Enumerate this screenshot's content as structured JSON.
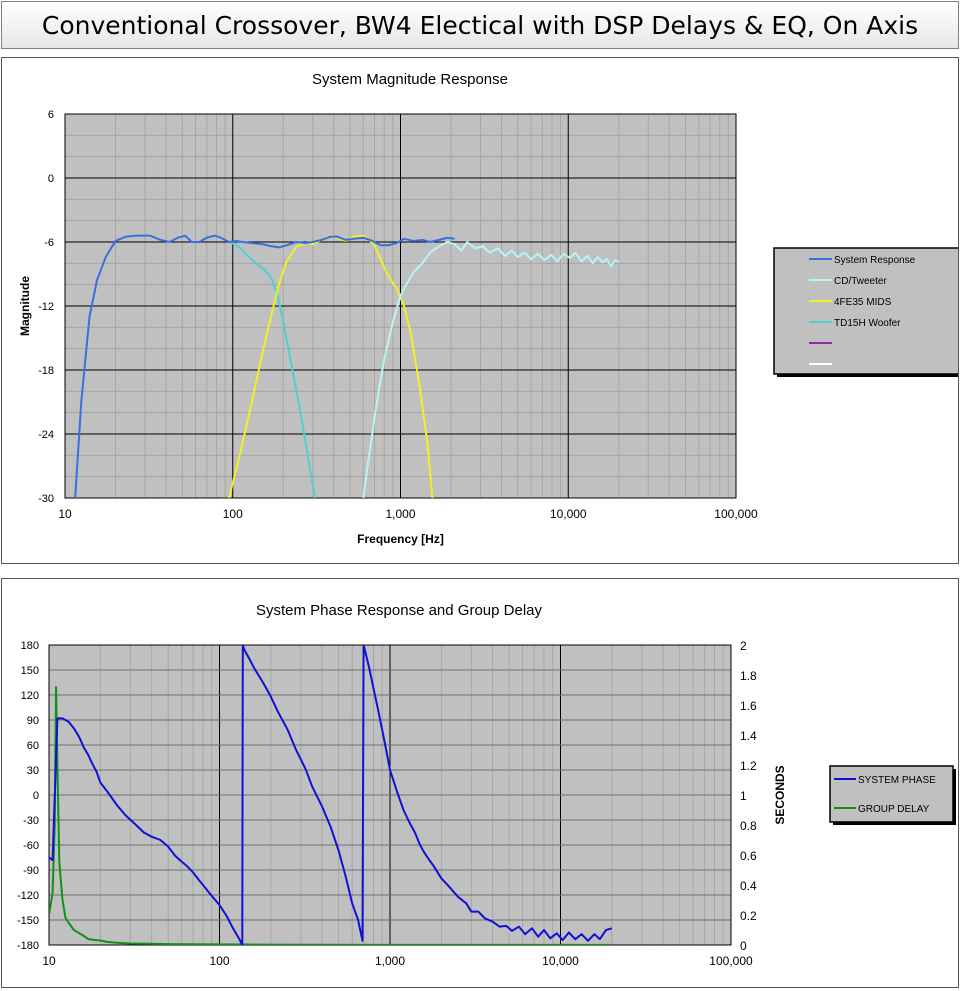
{
  "page_title": "Conventional Crossover,  BW4 Electical with DSP Delays & EQ, On Axis",
  "chart_data": [
    {
      "type": "line",
      "title": "System Magnitude Response",
      "xlabel": "Frequency [Hz]",
      "ylabel": "Magnitude",
      "x_scale": "log",
      "xlim": [
        10,
        100000
      ],
      "ylim": [
        -30,
        6
      ],
      "x_ticks": [
        10,
        100,
        1000,
        10000,
        100000
      ],
      "x_tick_labels": [
        "10",
        "100",
        "1,000",
        "10,000",
        "100,000"
      ],
      "y_ticks": [
        -30,
        -24,
        -18,
        -12,
        -6,
        0,
        6
      ],
      "y_tick_labels": [
        "-30",
        "-24",
        "-18",
        "-12",
        "-6",
        "0",
        "6"
      ],
      "grid": true,
      "plot_background": "#c0c0c0",
      "legend_position": "right",
      "legend_entries": [
        "System Response",
        "CD/Tweeter",
        "4FE35 MIDS",
        "TD15H Woofer",
        "",
        ""
      ],
      "series": [
        {
          "name": "System Response",
          "color": "#3a6fe0",
          "x": [
            11.5,
            12.5,
            14,
            15.5,
            17.5,
            20,
            23,
            27,
            32,
            37,
            42,
            47,
            52,
            57,
            63,
            70,
            78,
            85,
            95,
            105,
            115,
            130,
            150,
            170,
            190,
            210,
            240,
            270,
            300,
            340,
            380,
            420,
            470,
            530,
            600,
            680,
            760,
            850,
            950,
            1050,
            1200,
            1350,
            1500,
            1700,
            1900,
            2100
          ],
          "y": [
            -30,
            -21,
            -13,
            -9.6,
            -7.4,
            -5.9,
            -5.5,
            -5.4,
            -5.4,
            -5.8,
            -6.0,
            -5.6,
            -5.4,
            -6.0,
            -6.0,
            -5.6,
            -5.4,
            -5.6,
            -6.0,
            -5.9,
            -6.0,
            -6.1,
            -6.2,
            -6.4,
            -6.5,
            -6.3,
            -6.0,
            -6.1,
            -6.0,
            -5.8,
            -5.5,
            -5.5,
            -5.8,
            -5.7,
            -5.6,
            -5.9,
            -6.3,
            -6.3,
            -6.1,
            -5.7,
            -5.9,
            -5.8,
            -6.0,
            -5.8,
            -5.6,
            -5.7
          ]
        },
        {
          "name": "CD/Tweeter",
          "color": "#b8f4f4",
          "x": [
            600,
            650,
            700,
            750,
            800,
            900,
            1000,
            1100,
            1200,
            1350,
            1500,
            1700,
            1900,
            2100,
            2300,
            2500,
            2800,
            3100,
            3400,
            3800,
            4200,
            4600,
            5000,
            5500,
            6000,
            6600,
            7200,
            7900,
            8600,
            9400,
            10200,
            11000,
            12000,
            13000,
            14000,
            15000,
            16000,
            17000,
            18000,
            19000,
            20000
          ],
          "y": [
            -30,
            -26,
            -22.5,
            -19.5,
            -17,
            -13.5,
            -11,
            -9.8,
            -8.8,
            -8.0,
            -7.0,
            -6.4,
            -6.0,
            -6.2,
            -6.8,
            -6.0,
            -6.6,
            -6.4,
            -7.0,
            -6.6,
            -7.3,
            -6.8,
            -7.4,
            -7.0,
            -7.6,
            -7.1,
            -7.7,
            -7.2,
            -7.8,
            -7.1,
            -7.5,
            -7.0,
            -7.8,
            -7.3,
            -8.0,
            -7.4,
            -7.9,
            -7.6,
            -8.3,
            -7.7,
            -7.9
          ]
        },
        {
          "name": "4FE35 MIDS",
          "color": "#f0f023",
          "x": [
            95,
            110,
            130,
            150,
            170,
            190,
            210,
            240,
            270,
            300,
            340,
            380,
            420,
            470,
            530,
            600,
            650,
            700,
            760,
            820,
            880,
            950,
            1050,
            1150,
            1300,
            1450,
            1550
          ],
          "y": [
            -30,
            -26,
            -21,
            -16.5,
            -12.8,
            -9.8,
            -7.8,
            -6.4,
            -6.1,
            -6.2,
            -5.8,
            -5.4,
            -5.6,
            -5.9,
            -5.5,
            -5.4,
            -5.8,
            -6.3,
            -7.6,
            -8.8,
            -9.6,
            -10.4,
            -12,
            -14.5,
            -19.5,
            -25,
            -30
          ]
        },
        {
          "name": "TD15H Woofer",
          "color": "#4fd0d0",
          "x": [
            95,
            105,
            115,
            125,
            140,
            155,
            170,
            185,
            200,
            215,
            230,
            250,
            270,
            290,
            310
          ],
          "y": [
            -6.0,
            -6.3,
            -6.8,
            -7.4,
            -8.1,
            -8.6,
            -9.4,
            -11,
            -13.5,
            -16,
            -18.5,
            -21.5,
            -24.5,
            -27.5,
            -30
          ]
        }
      ]
    },
    {
      "type": "line",
      "title": "System Phase Response and Group Delay",
      "xlabel": "",
      "ylabel": "",
      "y2label": "SECONDS",
      "x_scale": "log",
      "xlim": [
        10,
        100000
      ],
      "ylim": [
        -180,
        180
      ],
      "y2lim": [
        0,
        2
      ],
      "x_ticks": [
        10,
        100,
        1000,
        10000,
        100000
      ],
      "x_tick_labels": [
        "10",
        "100",
        "1,000",
        "10,000",
        "100,000"
      ],
      "y_ticks": [
        -180,
        -150,
        -120,
        -90,
        -60,
        -30,
        0,
        30,
        60,
        90,
        120,
        150,
        180
      ],
      "y_tick_labels": [
        "-180",
        "-150",
        "-120",
        "-90",
        "-60",
        "-30",
        "0",
        "30",
        "60",
        "90",
        "120",
        "150",
        "180"
      ],
      "y2_ticks": [
        0,
        0.2,
        0.4,
        0.6,
        0.8,
        1,
        1.2,
        1.4,
        1.6,
        1.8,
        2
      ],
      "y2_tick_labels": [
        "0",
        "0.2",
        "0.4",
        "0.6",
        "0.8",
        "1",
        "1.2",
        "1.4",
        "1.6",
        "1.8",
        "2"
      ],
      "grid": true,
      "plot_background": "#c0c0c0",
      "legend_position": "right",
      "legend_entries": [
        "SYSTEM PHASE",
        "GROUP DELAY"
      ],
      "series": [
        {
          "name": "SYSTEM PHASE",
          "color": "#1010d8",
          "axis": "left",
          "x": [
            10,
            10.5,
            11.2,
            12,
            13,
            14,
            15,
            16,
            17,
            18,
            19,
            20,
            22,
            25,
            28,
            32,
            36,
            40,
            45,
            50,
            55,
            60,
            65,
            70,
            75,
            80,
            90,
            100,
            110,
            120,
            130,
            136,
            137,
            140,
            150,
            160,
            180,
            200,
            220,
            250,
            280,
            320,
            350,
            400,
            450,
            500,
            550,
            600,
            650,
            690,
            700,
            720,
            750,
            800,
            850,
            900,
            950,
            1000,
            1100,
            1200,
            1300,
            1400,
            1500,
            1600,
            1700,
            1800,
            2000,
            2200,
            2500,
            2800,
            3000,
            3300,
            3600,
            4000,
            4400,
            4800,
            5200,
            5700,
            6200,
            6800,
            7400,
            8000,
            8700,
            9500,
            10300,
            11200,
            12200,
            13300,
            14500,
            15800,
            17000,
            18500,
            20000
          ],
          "y": [
            -75,
            -78,
            92,
            92,
            88,
            80,
            70,
            57,
            48,
            37,
            28,
            15,
            4,
            -12,
            -24,
            -35,
            -45,
            -50,
            -54,
            -62,
            -73,
            -80,
            -86,
            -93,
            -101,
            -108,
            -121,
            -132,
            -145,
            -160,
            -172,
            -180,
            180,
            174,
            163,
            152,
            135,
            118,
            100,
            79,
            55,
            31,
            10,
            -14,
            -39,
            -67,
            -98,
            -130,
            -150,
            -175,
            180,
            170,
            155,
            128,
            103,
            78,
            54,
            30,
            4,
            -18,
            -33,
            -45,
            -60,
            -70,
            -78,
            -85,
            -100,
            -109,
            -122,
            -130,
            -140,
            -140,
            -148,
            -152,
            -158,
            -157,
            -163,
            -158,
            -167,
            -160,
            -170,
            -162,
            -172,
            -166,
            -174,
            -165,
            -173,
            -167,
            -175,
            -167,
            -173,
            -162,
            -160
          ]
        },
        {
          "name": "GROUP DELAY",
          "color": "#12901a",
          "axis": "right",
          "x": [
            10,
            10.5,
            10.8,
            11,
            11.2,
            11.5,
            12,
            12.5,
            13,
            14,
            15,
            16,
            17,
            18,
            20,
            22,
            25,
            30,
            40,
            50,
            70,
            100,
            150,
            300,
            1000,
            3000,
            10000,
            20000
          ],
          "y": [
            0.2,
            0.35,
            0.8,
            1.72,
            1.2,
            0.55,
            0.3,
            0.18,
            0.15,
            0.1,
            0.08,
            0.06,
            0.04,
            0.035,
            0.03,
            0.02,
            0.015,
            0.01,
            0.008,
            0.006,
            0.005,
            0.004,
            0.003,
            0.002,
            0.001,
            0.001,
            0.001,
            0.001
          ]
        }
      ]
    }
  ]
}
